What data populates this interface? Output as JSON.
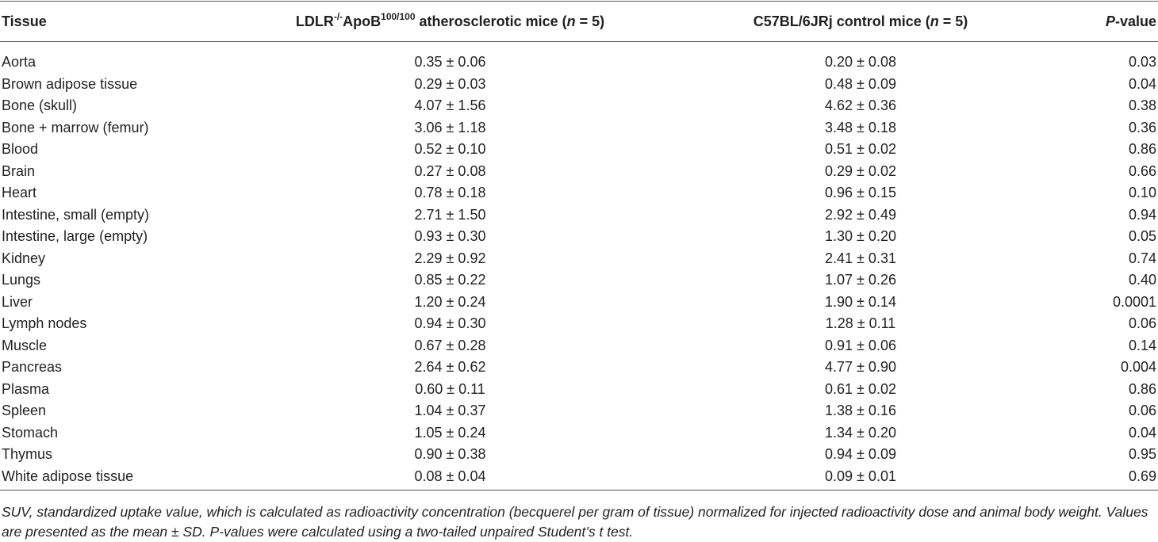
{
  "table": {
    "header": [
      [
        "Tissue"
      ],
      [
        "LDLR",
        "-/-",
        "ApoB",
        "100/100",
        " atherosclerotic mice (",
        "n",
        " = 5)"
      ],
      [
        "C57BL/6JRj control mice (",
        "n",
        " = 5)"
      ],
      [
        "P",
        "-value"
      ]
    ],
    "rows": [
      [
        "Aorta",
        "0.35 ± 0.06",
        "0.20 ± 0.08",
        "0.03"
      ],
      [
        "Brown adipose tissue",
        "0.29 ± 0.03",
        "0.48 ± 0.09",
        "0.04"
      ],
      [
        "Bone (skull)",
        "4.07 ± 1.56",
        "4.62 ± 0.36",
        "0.38"
      ],
      [
        "Bone + marrow (femur)",
        "3.06 ± 1.18",
        "3.48 ± 0.18",
        "0.36"
      ],
      [
        "Blood",
        "0.52 ± 0.10",
        "0.51 ± 0.02",
        "0.86"
      ],
      [
        "Brain",
        "0.27 ± 0.08",
        "0.29 ± 0.02",
        "0.66"
      ],
      [
        "Heart",
        "0.78 ± 0.18",
        "0.96 ± 0.15",
        "0.10"
      ],
      [
        "Intestine, small (empty)",
        "2.71 ± 1.50",
        "2.92 ± 0.49",
        "0.94"
      ],
      [
        "Intestine, large (empty)",
        "0.93 ± 0.30",
        "1.30 ± 0.20",
        "0.05"
      ],
      [
        "Kidney",
        "2.29 ± 0.92",
        "2.41 ± 0.31",
        "0.74"
      ],
      [
        "Lungs",
        "0.85 ± 0.22",
        "1.07 ± 0.26",
        "0.40"
      ],
      [
        "Liver",
        "1.20 ± 0.24",
        "1.90 ± 0.14",
        "0.0001"
      ],
      [
        "Lymph nodes",
        "0.94 ± 0.30",
        "1.28 ± 0.11",
        "0.06"
      ],
      [
        "Muscle",
        "0.67 ± 0.28",
        "0.91 ± 0.06",
        "0.14"
      ],
      [
        "Pancreas",
        "2.64 ± 0.62",
        "4.77 ± 0.90",
        "0.004"
      ],
      [
        "Plasma",
        "0.60 ± 0.11",
        "0.61 ± 0.02",
        "0.86"
      ],
      [
        "Spleen",
        "1.04 ± 0.37",
        "1.38 ± 0.16",
        "0.06"
      ],
      [
        "Stomach",
        "1.05 ± 0.24",
        "1.34 ± 0.20",
        "0.04"
      ],
      [
        "Thymus",
        "0.90 ± 0.38",
        "0.94 ± 0.09",
        "0.95"
      ],
      [
        "White adipose tissue",
        "0.08 ± 0.04",
        "0.09 ± 0.01",
        "0.69"
      ]
    ],
    "footnote": "SUV, standardized uptake value, which is calculated as radioactivity concentration (becquerel per gram of tissue) normalized for injected radioactivity dose and animal body weight. Values are presented as the mean ± SD. P-values were calculated using a two-tailed unpaired Student’s t test."
  }
}
